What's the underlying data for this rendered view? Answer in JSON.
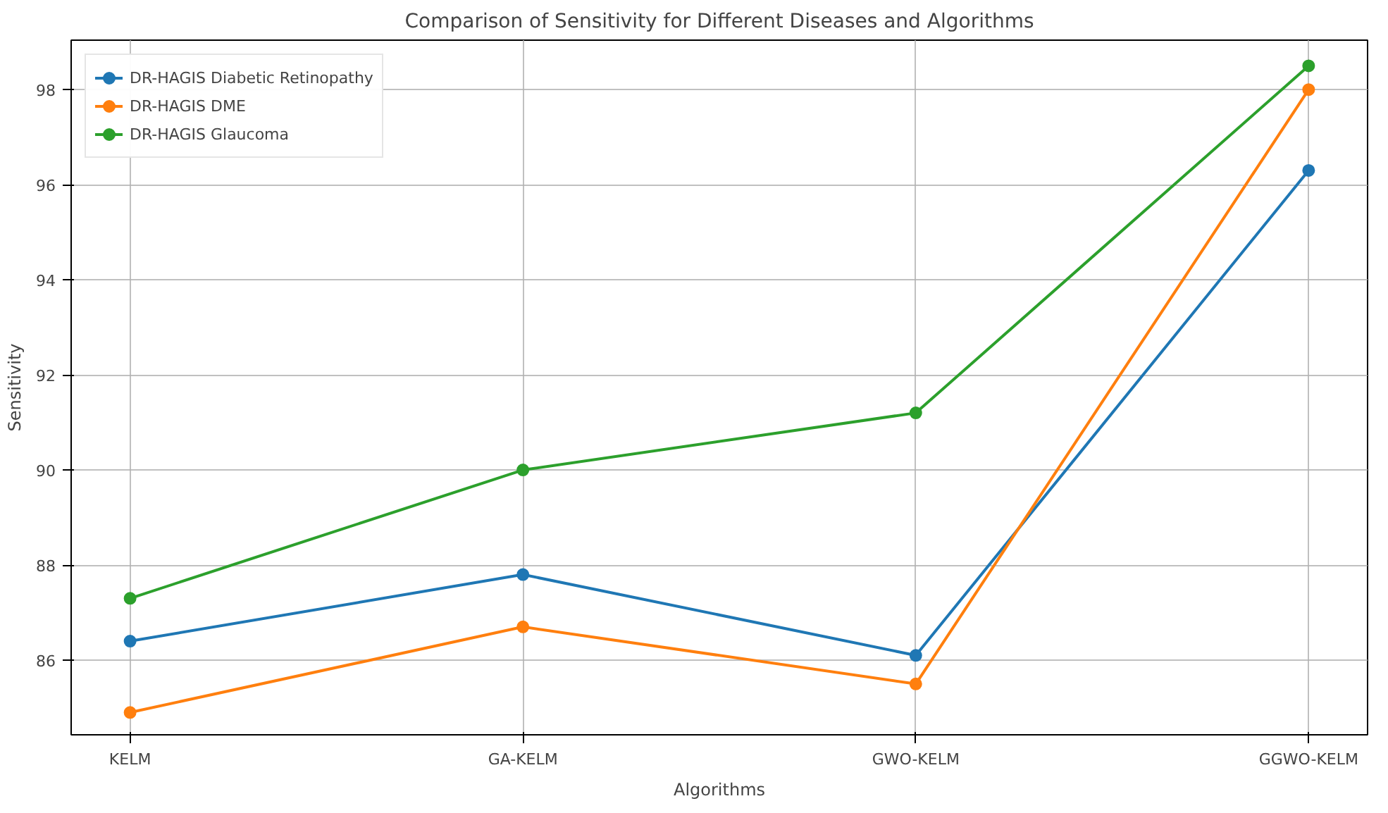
{
  "chart_data": {
    "type": "line",
    "title": "Comparison of Sensitivity for Different Diseases and Algorithms",
    "xlabel": "Algorithms",
    "ylabel": "Sensitivity",
    "categories": [
      "KELM",
      "GA-KELM",
      "GWO-KELM",
      "GGWO-KELM"
    ],
    "series": [
      {
        "name": "DR-HAGIS Diabetic Retinopathy",
        "color": "#1f77b4",
        "values": [
          86.4,
          87.8,
          86.1,
          96.3
        ]
      },
      {
        "name": "DR-HAGIS DME",
        "color": "#ff7f0e",
        "values": [
          84.9,
          86.7,
          85.5,
          98.0
        ]
      },
      {
        "name": "DR-HAGIS Glaucoma",
        "color": "#2ca02c",
        "values": [
          87.3,
          90.0,
          91.2,
          98.5
        ]
      }
    ],
    "ylim": [
      84.43,
      99.04
    ],
    "yticks": [
      86,
      88,
      90,
      92,
      94,
      96,
      98
    ],
    "grid": true,
    "legend": "top left",
    "marker": "circle",
    "line_style": "solid"
  }
}
